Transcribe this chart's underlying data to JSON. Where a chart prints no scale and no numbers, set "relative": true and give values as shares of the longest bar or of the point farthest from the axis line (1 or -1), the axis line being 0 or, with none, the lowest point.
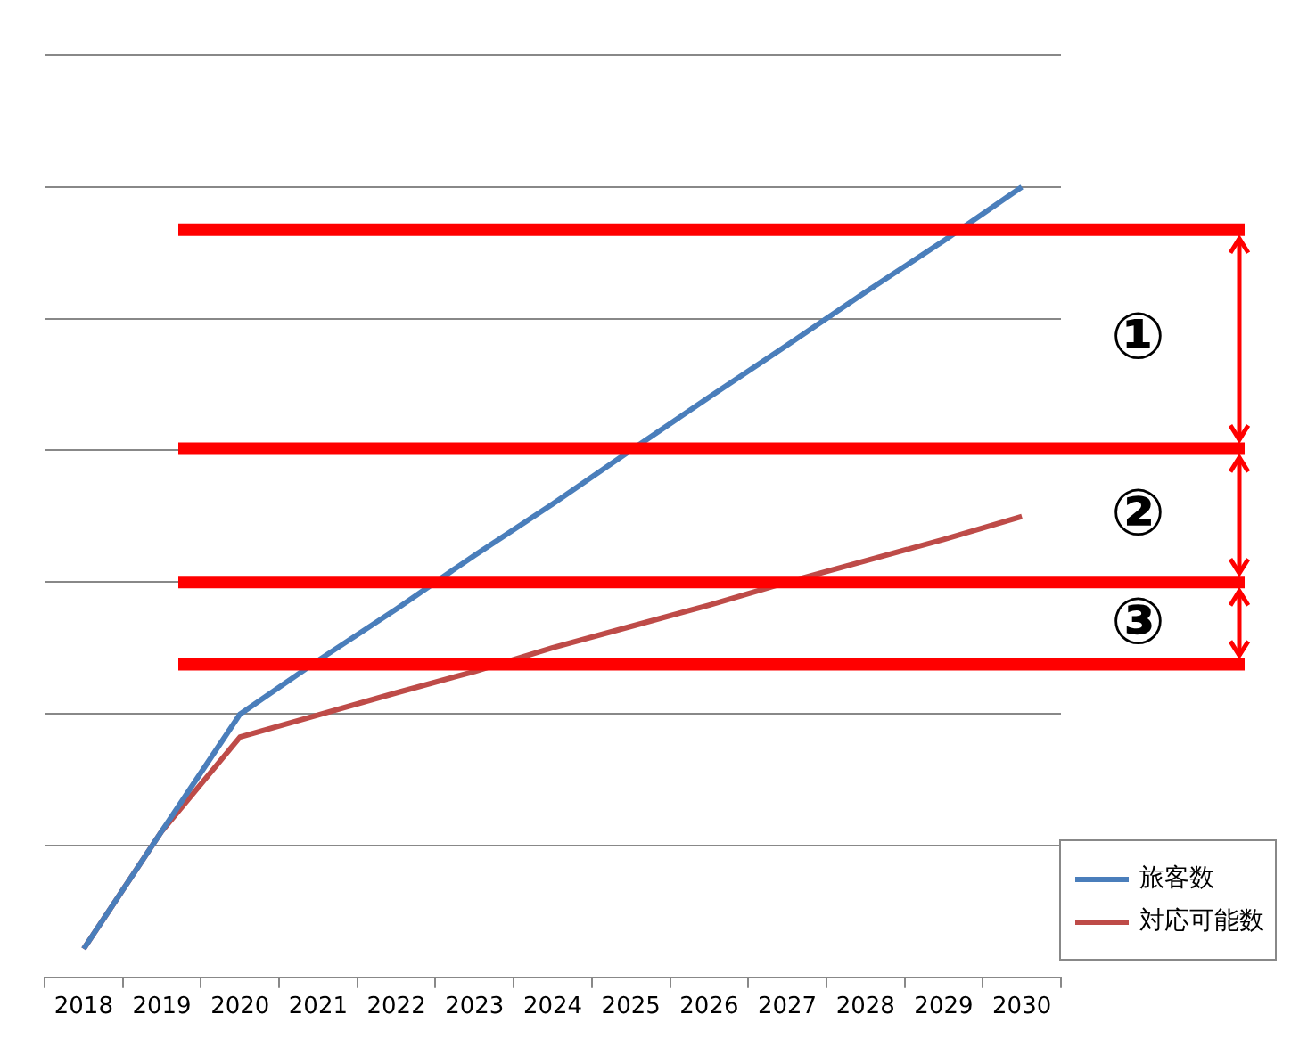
{
  "chart_data": {
    "type": "line",
    "relative": true,
    "categories": [
      "2018",
      "2019",
      "2020",
      "2021",
      "2022",
      "2023",
      "2024",
      "2025",
      "2026",
      "2027",
      "2028",
      "2029",
      "2030"
    ],
    "series": [
      {
        "name": "旅客数",
        "color": "#4a7ebb",
        "values": [
          0.036,
          0.185,
          0.333,
          0.401,
          0.466,
          0.534,
          0.599,
          0.667,
          0.734,
          0.8,
          0.867,
          0.932,
          1
        ]
      },
      {
        "name": "対応可能数",
        "color": "#be4b48",
        "values": [
          0.036,
          0.185,
          0.304,
          0.332,
          0.36,
          0.387,
          0.417,
          0.444,
          0.471,
          0.5,
          0.527,
          0.554,
          0.583
        ]
      }
    ],
    "ref_lines": [
      {
        "axis": "y",
        "value": 0.946,
        "color": "#ff0000"
      },
      {
        "axis": "y",
        "value": 0.669,
        "color": "#ff0000"
      },
      {
        "axis": "y",
        "value": 0.5,
        "color": "#ff0000"
      },
      {
        "axis": "y",
        "value": 0.396,
        "color": "#ff0000"
      }
    ],
    "annotations": [
      "①",
      "②",
      "③"
    ],
    "grid": "y",
    "legend": "bottom right",
    "marker": "none",
    "line_style": "solid"
  }
}
